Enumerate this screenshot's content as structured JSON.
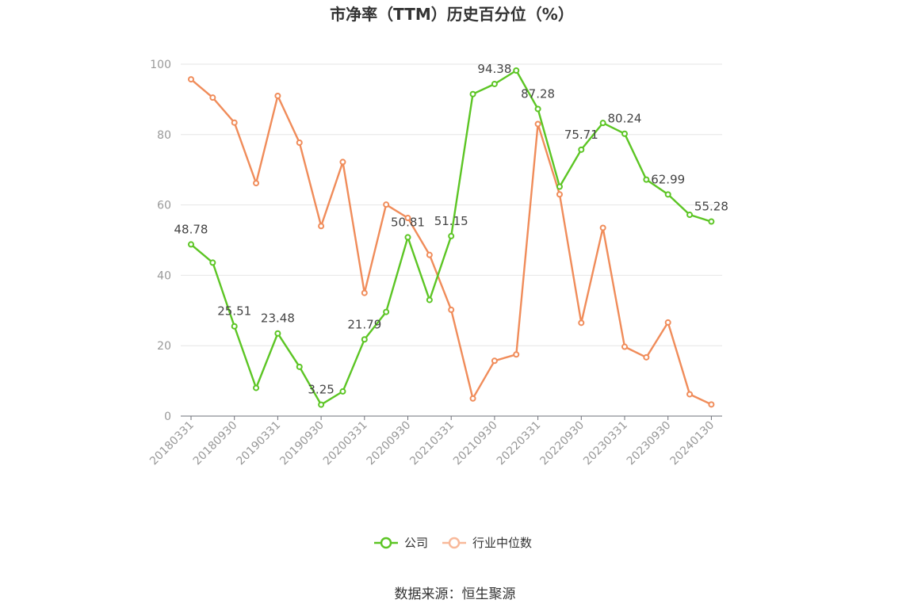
{
  "chart_data": {
    "type": "line",
    "title": "市净率（TTM）历史百分位（%）",
    "source": "数据来源：恒生聚源",
    "ylim": [
      0,
      100
    ],
    "yticks": [
      0,
      20,
      40,
      60,
      80,
      100
    ],
    "grid": true,
    "legend_position": "bottom",
    "x": [
      "20180331",
      "20180630",
      "20180930",
      "20181231",
      "20190331",
      "20190630",
      "20190930",
      "20191231",
      "20200331",
      "20200630",
      "20200930",
      "20201231",
      "20210331",
      "20210630",
      "20210930",
      "20211231",
      "20220331",
      "20220630",
      "20220930",
      "20221231",
      "20230331",
      "20230630",
      "20230930",
      "20231231",
      "20240130"
    ],
    "xtick_labels": [
      "20180331",
      "20180930",
      "20190331",
      "20190930",
      "20200331",
      "20200930",
      "20210331",
      "20210930",
      "20220331",
      "20220930",
      "20230331",
      "20230930",
      "20240130"
    ],
    "xtick_indices": [
      0,
      2,
      4,
      6,
      8,
      10,
      12,
      14,
      16,
      18,
      20,
      22,
      24
    ],
    "series": [
      {
        "name": "公司",
        "color": "#5cc524",
        "values": [
          48.78,
          43.6,
          25.51,
          8.0,
          23.48,
          14.0,
          3.25,
          7.0,
          21.79,
          29.6,
          50.81,
          33.0,
          51.15,
          91.5,
          94.38,
          98.2,
          87.28,
          65.2,
          75.71,
          83.3,
          80.24,
          67.2,
          62.99,
          57.2,
          55.28
        ],
        "labels": {
          "0": "48.78",
          "2": "25.51",
          "4": "23.48",
          "6": "3.25",
          "8": "21.79",
          "10": "50.81",
          "12": "51.15",
          "14": "94.38",
          "16": "87.28",
          "18": "75.71",
          "20": "80.24",
          "22": "62.99",
          "24": "55.28"
        }
      },
      {
        "name": "行业中位数",
        "color": "#f08c5a",
        "values": [
          95.7,
          90.5,
          83.4,
          66.2,
          91.0,
          77.7,
          54.0,
          72.2,
          35.0,
          60.1,
          56.3,
          45.8,
          30.2,
          5.0,
          15.7,
          17.5,
          83.0,
          63.0,
          26.5,
          53.5,
          19.7,
          16.7,
          26.6,
          6.2,
          3.3
        ]
      }
    ]
  }
}
